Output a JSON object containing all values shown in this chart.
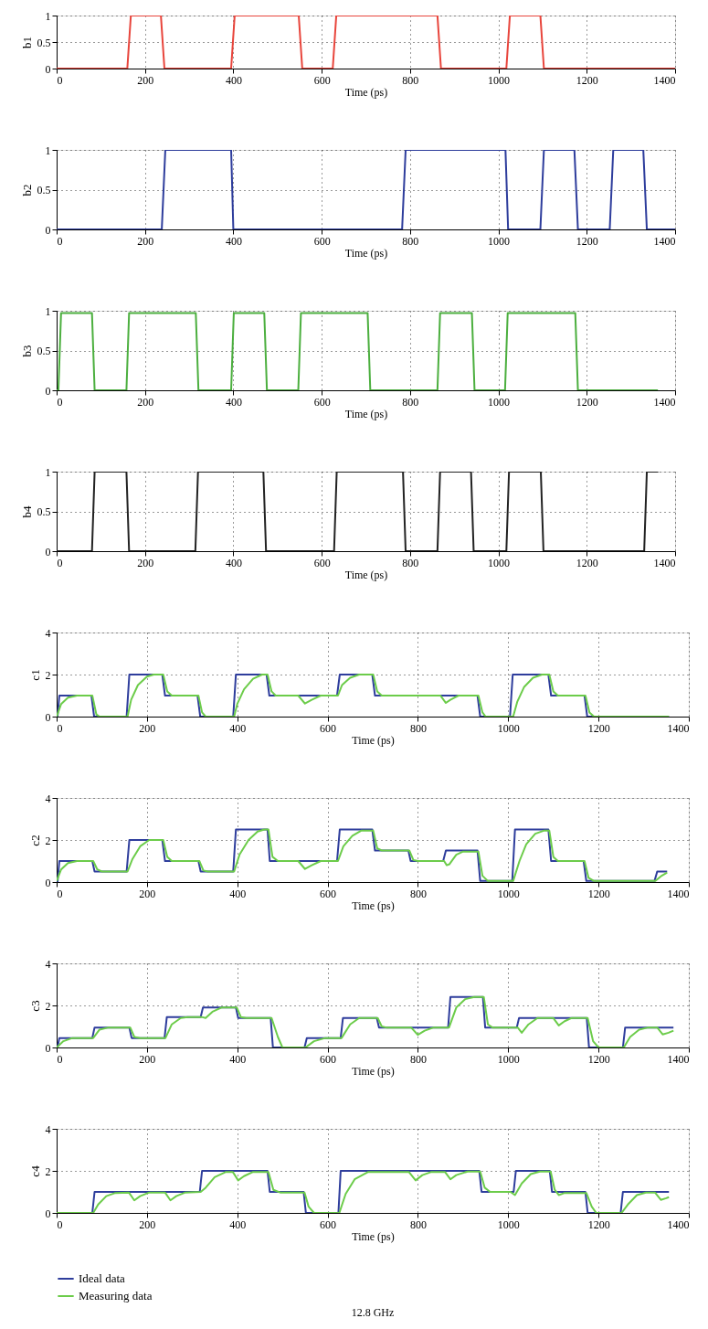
{
  "chart_data": [
    {
      "type": "line",
      "ylabel": "b1",
      "xlabel": "Time (ps)",
      "xlim": [
        0,
        1400
      ],
      "xticks": [
        0,
        200,
        400,
        600,
        800,
        1000,
        1200,
        1400
      ],
      "ylim": [
        0,
        1
      ],
      "yticks": [
        0,
        0.5,
        1
      ],
      "grid": true,
      "series": [
        {
          "color": "#e8453c",
          "x": [
            0,
            160,
            168,
            236,
            244,
            395,
            403,
            548,
            556,
            625,
            633,
            862,
            870,
            1018,
            1026,
            1095,
            1103,
            1400
          ],
          "values": [
            0,
            0,
            1,
            1,
            0,
            0,
            1,
            1,
            0,
            0,
            1,
            1,
            0,
            0,
            1,
            1,
            0,
            0
          ]
        }
      ]
    },
    {
      "type": "line",
      "ylabel": "b2",
      "xlabel": "Time (ps)",
      "xlim": [
        0,
        1400
      ],
      "xticks": [
        0,
        200,
        400,
        600,
        800,
        1000,
        1200,
        1400
      ],
      "ylim": [
        0,
        1
      ],
      "yticks": [
        0,
        0.5,
        1
      ],
      "grid": true,
      "series": [
        {
          "color": "#2e3d9c",
          "x": [
            0,
            238,
            246,
            395,
            400,
            782,
            790,
            1016,
            1022,
            1095,
            1103,
            1172,
            1180,
            1252,
            1260,
            1328,
            1336,
            1400
          ],
          "values": [
            0,
            0,
            1,
            1,
            0,
            0,
            1,
            1,
            0,
            0,
            1,
            1,
            0,
            0,
            1,
            1,
            0,
            0
          ]
        }
      ]
    },
    {
      "type": "line",
      "ylabel": "b3",
      "xlabel": "Time (ps)",
      "xlim": [
        0,
        1400
      ],
      "xticks": [
        0,
        200,
        400,
        600,
        800,
        1000,
        1200,
        1400
      ],
      "ylim": [
        0,
        1
      ],
      "yticks": [
        0,
        0.5,
        1
      ],
      "grid": true,
      "series": [
        {
          "color": "#4caf3f",
          "x": [
            0,
            4,
            10,
            80,
            86,
            158,
            164,
            315,
            321,
            395,
            401,
            470,
            476,
            547,
            553,
            704,
            710,
            862,
            868,
            940,
            946,
            1015,
            1021,
            1174,
            1180,
            1361
          ],
          "values": [
            0,
            0,
            0.97,
            0.97,
            0,
            0,
            0.97,
            0.97,
            0,
            0,
            0.97,
            0.97,
            0,
            0,
            0.97,
            0.97,
            0,
            0,
            0.97,
            0.97,
            0,
            0,
            0.97,
            0.97,
            0,
            0
          ]
        }
      ]
    },
    {
      "type": "line",
      "ylabel": "b4",
      "xlabel": "Time (ps)",
      "xlim": [
        0,
        1400
      ],
      "xticks": [
        0,
        200,
        400,
        600,
        800,
        1000,
        1200,
        1400
      ],
      "ylim": [
        0,
        1
      ],
      "yticks": [
        0,
        0.5,
        1
      ],
      "grid": true,
      "series": [
        {
          "color": "#222222",
          "x": [
            0,
            80,
            86,
            158,
            164,
            314,
            320,
            468,
            474,
            628,
            634,
            784,
            790,
            862,
            868,
            938,
            944,
            1018,
            1024,
            1096,
            1102,
            1330,
            1336,
            1362
          ],
          "values": [
            0,
            0,
            1,
            1,
            0,
            0,
            1,
            1,
            0,
            0,
            1,
            1,
            0,
            0,
            1,
            1,
            0,
            0,
            1,
            1,
            0,
            0,
            1,
            1
          ]
        }
      ]
    },
    {
      "type": "line",
      "ylabel": "c1",
      "xlabel": "Time (ps)",
      "xlim": [
        0,
        1400
      ],
      "xticks": [
        0,
        200,
        400,
        600,
        800,
        1000,
        1200,
        1400
      ],
      "ylim": [
        0,
        4
      ],
      "yticks": [
        0,
        2,
        4
      ],
      "grid": true,
      "series": [
        {
          "color": "#2e3d9c",
          "x": [
            0,
            2,
            6,
            77,
            83,
            155,
            161,
            234,
            240,
            312,
            318,
            391,
            397,
            465,
            471,
            621,
            627,
            699,
            705,
            932,
            938,
            1004,
            1010,
            1089,
            1095,
            1169,
            1175,
            1356
          ],
          "values": [
            0,
            0,
            1,
            1,
            0,
            0,
            2,
            2,
            1,
            1,
            0,
            0,
            2,
            2,
            1,
            1,
            2,
            2,
            1,
            1,
            0,
            0,
            2,
            2,
            1,
            1,
            0,
            0
          ]
        },
        {
          "color": "#6ccc4a",
          "x": [
            0,
            10,
            25,
            45,
            79,
            88,
            95,
            157,
            165,
            180,
            200,
            215,
            236,
            245,
            255,
            314,
            322,
            330,
            393,
            400,
            415,
            435,
            455,
            467,
            476,
            485,
            535,
            550,
            565,
            585,
            623,
            632,
            650,
            670,
            701,
            710,
            720,
            850,
            862,
            872,
            890,
            934,
            943,
            950,
            1011,
            1020,
            1035,
            1055,
            1075,
            1091,
            1100,
            1110,
            1171,
            1180,
            1190,
            1356
          ],
          "values": [
            0,
            0.6,
            0.9,
            1,
            1,
            0.1,
            0,
            0,
            0.8,
            1.5,
            1.9,
            2,
            2,
            1.2,
            1,
            1,
            0.2,
            0,
            0,
            0.6,
            1.3,
            1.8,
            2,
            2,
            1.2,
            1,
            1,
            0.62,
            0.8,
            1,
            1,
            1.5,
            1.85,
            2,
            2,
            1.2,
            1,
            1,
            0.65,
            0.8,
            1,
            1,
            0.2,
            0,
            0,
            0.7,
            1.4,
            1.85,
            2,
            2,
            1.2,
            1,
            1,
            0.2,
            0,
            0
          ]
        }
      ]
    },
    {
      "type": "line",
      "ylabel": "c2",
      "xlabel": "Time (ps)",
      "xlim": [
        0,
        1400
      ],
      "xticks": [
        0,
        200,
        400,
        600,
        800,
        1000,
        1200,
        1400
      ],
      "ylim": [
        0,
        4
      ],
      "yticks": [
        0,
        2,
        4
      ],
      "grid": true,
      "series": [
        {
          "color": "#2e3d9c",
          "x": [
            0,
            2,
            6,
            79,
            84,
            155,
            161,
            234,
            240,
            314,
            319,
            391,
            397,
            467,
            472,
            621,
            627,
            699,
            705,
            779,
            784,
            856,
            862,
            932,
            938,
            1009,
            1015,
            1089,
            1095,
            1167,
            1173,
            1324,
            1330,
            1352
          ],
          "values": [
            0,
            0,
            1,
            1,
            0.5,
            0.5,
            2,
            2,
            1,
            1,
            0.5,
            0.5,
            2.5,
            2.5,
            1,
            1,
            2.5,
            2.5,
            1.5,
            1.5,
            1,
            1,
            1.5,
            1.5,
            0.05,
            0.05,
            2.5,
            2.5,
            1,
            1,
            0.05,
            0.05,
            0.5,
            0.5
          ]
        },
        {
          "color": "#6ccc4a",
          "x": [
            0,
            10,
            25,
            45,
            81,
            90,
            100,
            157,
            168,
            185,
            205,
            236,
            245,
            255,
            316,
            325,
            335,
            393,
            405,
            425,
            445,
            460,
            469,
            478,
            490,
            535,
            550,
            565,
            585,
            623,
            635,
            655,
            675,
            701,
            710,
            720,
            781,
            790,
            800,
            858,
            864,
            870,
            885,
            900,
            934,
            943,
            955,
            1011,
            1025,
            1040,
            1060,
            1080,
            1091,
            1100,
            1110,
            1169,
            1178,
            1190,
            1326,
            1340,
            1352
          ],
          "values": [
            0.05,
            0.6,
            0.9,
            1,
            1,
            0.6,
            0.5,
            0.5,
            1.1,
            1.7,
            2,
            2,
            1.2,
            1,
            1,
            0.55,
            0.5,
            0.5,
            1.3,
            2,
            2.4,
            2.5,
            2.5,
            1.2,
            1,
            1,
            0.62,
            0.8,
            1,
            1,
            1.7,
            2.2,
            2.45,
            2.45,
            1.6,
            1.5,
            1.5,
            1.05,
            1,
            1,
            0.8,
            0.85,
            1.3,
            1.45,
            1.45,
            0.3,
            0.05,
            0.05,
            1,
            1.8,
            2.3,
            2.45,
            2.45,
            1.2,
            1,
            1,
            0.2,
            0.05,
            0.05,
            0.3,
            0.45
          ]
        }
      ]
    },
    {
      "type": "line",
      "ylabel": "c3",
      "xlabel": "Time (ps)",
      "xlim": [
        0,
        1400
      ],
      "xticks": [
        0,
        200,
        400,
        600,
        800,
        1000,
        1200,
        1400
      ],
      "ylim": [
        0,
        4
      ],
      "yticks": [
        0,
        2,
        4
      ],
      "grid": true,
      "series": [
        {
          "color": "#2e3d9c",
          "x": [
            0,
            2,
            6,
            79,
            84,
            161,
            166,
            239,
            244,
            319,
            324,
            397,
            402,
            474,
            479,
            549,
            554,
            629,
            634,
            709,
            714,
            867,
            872,
            944,
            949,
            1019,
            1024,
            1174,
            1179,
            1254,
            1259,
            1366
          ],
          "values": [
            0,
            0,
            0.45,
            0.45,
            0.95,
            0.95,
            0.45,
            0.45,
            1.45,
            1.45,
            1.9,
            1.9,
            1.4,
            1.4,
            0,
            0,
            0.45,
            0.45,
            1.4,
            1.4,
            0.95,
            0.95,
            2.4,
            2.4,
            0.95,
            0.95,
            1.4,
            1.4,
            0,
            0,
            0.95,
            0.95
          ]
        },
        {
          "color": "#6ccc4a",
          "x": [
            0,
            15,
            35,
            81,
            95,
            115,
            163,
            172,
            185,
            241,
            255,
            275,
            290,
            321,
            330,
            345,
            365,
            399,
            408,
            420,
            476,
            490,
            500,
            551,
            570,
            595,
            631,
            650,
            670,
            711,
            720,
            730,
            785,
            800,
            815,
            835,
            869,
            885,
            905,
            925,
            946,
            955,
            965,
            1021,
            1030,
            1045,
            1065,
            1100,
            1112,
            1125,
            1140,
            1176,
            1188,
            1200,
            1256,
            1270,
            1290,
            1310,
            1330,
            1342,
            1355,
            1366
          ],
          "values": [
            0,
            0.3,
            0.45,
            0.45,
            0.85,
            0.95,
            0.95,
            0.5,
            0.45,
            0.45,
            1.1,
            1.4,
            1.45,
            1.45,
            1.4,
            1.7,
            1.9,
            1.9,
            1.45,
            1.4,
            1.4,
            0.5,
            0,
            0,
            0.3,
            0.45,
            0.45,
            1.1,
            1.4,
            1.4,
            1,
            0.95,
            0.95,
            0.6,
            0.8,
            0.95,
            0.95,
            1.9,
            2.3,
            2.4,
            2.4,
            1.1,
            0.95,
            0.95,
            0.7,
            1.1,
            1.4,
            1.4,
            1.05,
            1.25,
            1.4,
            1.4,
            0.3,
            0,
            0,
            0.5,
            0.85,
            0.95,
            0.95,
            0.62,
            0.7,
            0.8
          ]
        }
      ]
    },
    {
      "type": "line",
      "ylabel": "c4",
      "xlabel": "Time (ps)",
      "xlim": [
        0,
        1400
      ],
      "xticks": [
        0,
        200,
        400,
        600,
        800,
        1000,
        1200,
        1400
      ],
      "ylim": [
        0,
        4
      ],
      "yticks": [
        0,
        2,
        4
      ],
      "grid": true,
      "legend": "bottom",
      "annotations": [
        "12.8 GHz"
      ],
      "series": [
        {
          "name": "Ideal data",
          "color": "#2e3d9c",
          "x": [
            0,
            79,
            84,
            317,
            322,
            467,
            472,
            547,
            552,
            624,
            629,
            936,
            941,
            1012,
            1017,
            1092,
            1097,
            1171,
            1176,
            1249,
            1254,
            1356
          ],
          "values": [
            0,
            0,
            1,
            1,
            2,
            2,
            1,
            1,
            0,
            0,
            2,
            2,
            1,
            1,
            2,
            2,
            1,
            1,
            0,
            0,
            1,
            1
          ]
        },
        {
          "name": "Measuring data",
          "color": "#6ccc4a",
          "x": [
            0,
            81,
            92,
            110,
            130,
            160,
            172,
            185,
            205,
            240,
            252,
            265,
            285,
            319,
            330,
            350,
            375,
            390,
            402,
            415,
            435,
            469,
            480,
            495,
            549,
            558,
            570,
            626,
            640,
            660,
            690,
            780,
            795,
            810,
            830,
            860,
            872,
            885,
            910,
            938,
            948,
            960,
            1005,
            1015,
            1030,
            1050,
            1070,
            1094,
            1103,
            1112,
            1125,
            1173,
            1185,
            1195,
            1251,
            1265,
            1285,
            1305,
            1325,
            1338,
            1350,
            1356
          ],
          "values": [
            0,
            0,
            0.4,
            0.8,
            0.95,
            0.97,
            0.6,
            0.8,
            0.97,
            0.97,
            0.6,
            0.8,
            0.97,
            1,
            1.2,
            1.7,
            1.95,
            1.95,
            1.55,
            1.75,
            1.95,
            1.95,
            1.1,
            0.97,
            0.97,
            0.3,
            0,
            0,
            0.9,
            1.6,
            1.95,
            1.95,
            1.55,
            1.8,
            1.95,
            1.95,
            1.6,
            1.8,
            1.97,
            1.97,
            1.2,
            1,
            1,
            0.85,
            1.4,
            1.85,
            1.97,
            1.97,
            1.1,
            0.85,
            0.95,
            0.95,
            0.3,
            0,
            0,
            0.4,
            0.85,
            0.97,
            0.97,
            0.62,
            0.7,
            0.75
          ]
        }
      ]
    }
  ]
}
